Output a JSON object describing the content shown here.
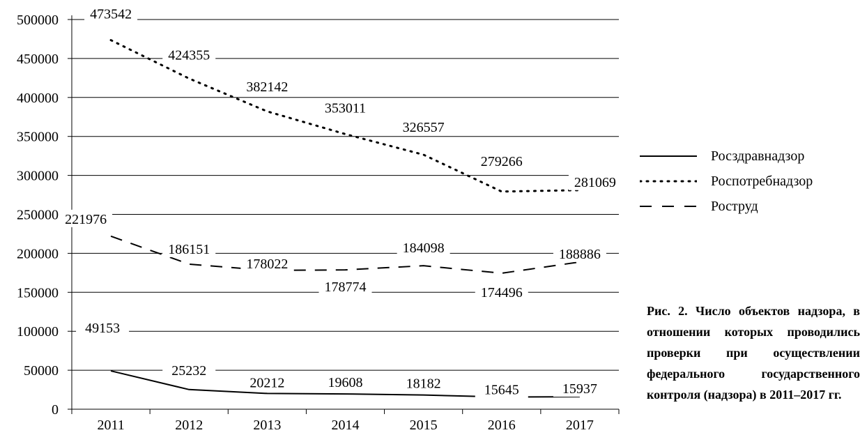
{
  "chart_data": {
    "type": "line",
    "categories": [
      "2011",
      "2012",
      "2013",
      "2014",
      "2015",
      "2016",
      "2017"
    ],
    "ylim": [
      0,
      500000
    ],
    "yticks": [
      "0",
      "50000",
      "100000",
      "150000",
      "200000",
      "250000",
      "300000",
      "350000",
      "400000",
      "450000",
      "500000"
    ],
    "grid": true,
    "legend_position": "right",
    "series": [
      {
        "name": "Росздравнадзор",
        "style": "solid",
        "values": [
          49153,
          25232,
          20212,
          19608,
          18182,
          15645,
          15937
        ],
        "labels": [
          "49153",
          "25232",
          "20212",
          "19608",
          "18182",
          "15645",
          "15937"
        ]
      },
      {
        "name": "Роспотребнадзор",
        "style": "dotted",
        "values": [
          473542,
          424355,
          382142,
          353011,
          326557,
          279266,
          281069
        ],
        "labels": [
          "473542",
          "424355",
          "382142",
          "353011",
          "326557",
          "279266",
          "281069"
        ]
      },
      {
        "name": "Роструд",
        "style": "dashed",
        "values": [
          221976,
          186151,
          178022,
          178774,
          184098,
          174496,
          188886
        ],
        "labels": [
          "221976",
          "186151",
          "178022",
          "178774",
          "184098",
          "174496",
          "188886"
        ]
      }
    ]
  },
  "caption": "Рис. 2. Число объектов надзора, в отношении которых проводились проверки при осуществлении федерального государственного контроля (надзора) в 2011–2017 гг.",
  "colors": {
    "line": "#000000",
    "grid": "#000000",
    "background": "#ffffff"
  }
}
